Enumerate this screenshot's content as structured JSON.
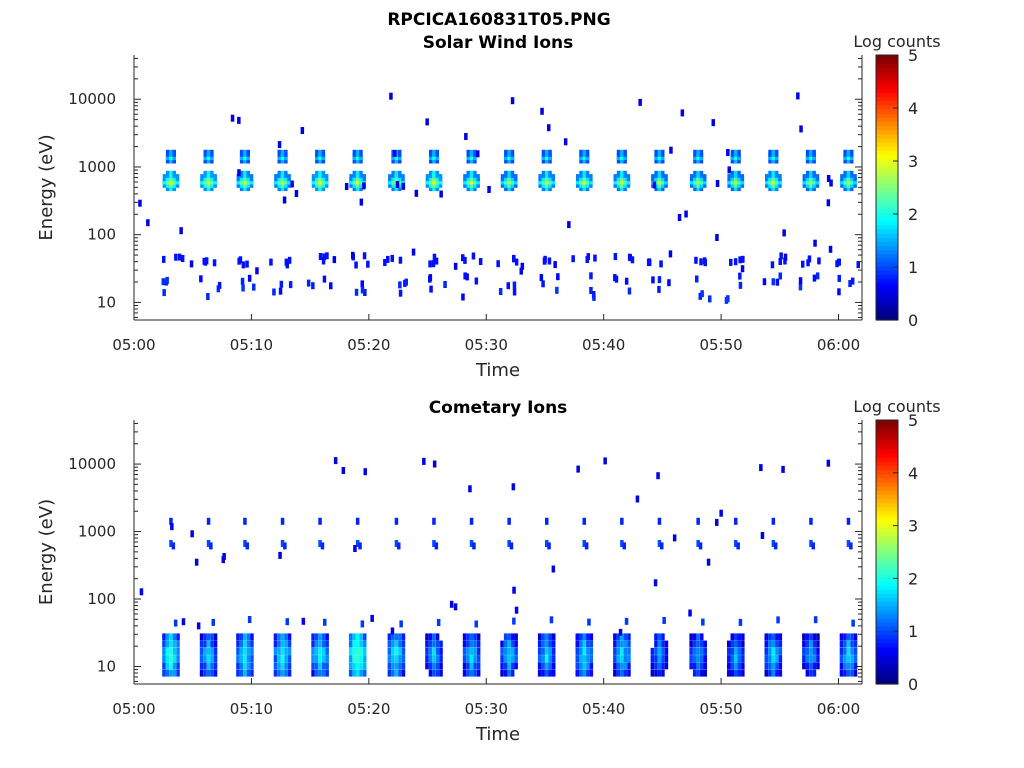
{
  "figure": {
    "file_title": "RPCICA160831T05.PNG"
  },
  "colorbar": {
    "label": "Log counts",
    "ticks": [
      "0",
      "1",
      "2",
      "3",
      "4",
      "5"
    ],
    "range": [
      0,
      5
    ],
    "colormap": "jet"
  },
  "chart_data": [
    {
      "type": "heatmap",
      "title": "Solar Wind Ions",
      "xlabel": "Time",
      "ylabel": "Energy (eV)",
      "x_ticks": [
        "05:00",
        "05:10",
        "05:20",
        "05:30",
        "05:40",
        "05:50",
        "06:00"
      ],
      "x_range_minutes": [
        0,
        62
      ],
      "y_ticks": [
        "10",
        "100",
        "1000",
        "10000"
      ],
      "y_scale": "log",
      "y_range_eV": [
        5.5,
        45000
      ],
      "peaks": [
        {
          "time_min": 3.0,
          "energy_eV": 700,
          "log_counts": 3.0
        },
        {
          "time_min": 6.2,
          "energy_eV": 700,
          "log_counts": 3.0
        },
        {
          "time_min": 9.3,
          "energy_eV": 700,
          "log_counts": 2.9
        },
        {
          "time_min": 12.5,
          "energy_eV": 700,
          "log_counts": 2.9
        },
        {
          "time_min": 15.7,
          "energy_eV": 700,
          "log_counts": 3.0
        },
        {
          "time_min": 18.9,
          "energy_eV": 700,
          "log_counts": 2.9
        },
        {
          "time_min": 22.2,
          "energy_eV": 700,
          "log_counts": 2.9
        },
        {
          "time_min": 25.4,
          "energy_eV": 700,
          "log_counts": 3.0
        },
        {
          "time_min": 28.6,
          "energy_eV": 700,
          "log_counts": 2.9
        },
        {
          "time_min": 31.8,
          "energy_eV": 700,
          "log_counts": 2.8
        },
        {
          "time_min": 35.0,
          "energy_eV": 700,
          "log_counts": 2.9
        },
        {
          "time_min": 38.2,
          "energy_eV": 700,
          "log_counts": 2.9
        },
        {
          "time_min": 41.4,
          "energy_eV": 700,
          "log_counts": 2.9
        },
        {
          "time_min": 44.6,
          "energy_eV": 700,
          "log_counts": 2.8
        },
        {
          "time_min": 47.9,
          "energy_eV": 700,
          "log_counts": 2.8
        },
        {
          "time_min": 51.1,
          "energy_eV": 700,
          "log_counts": 2.8
        },
        {
          "time_min": 54.3,
          "energy_eV": 700,
          "log_counts": 2.9
        },
        {
          "time_min": 57.5,
          "energy_eV": 700,
          "log_counts": 2.8
        },
        {
          "time_min": 60.7,
          "energy_eV": 700,
          "log_counts": 2.8
        }
      ],
      "secondary_peak_energy_eV": 1600,
      "low_energy_band_eV": [
        12,
        50
      ]
    },
    {
      "type": "heatmap",
      "title": "Cometary Ions",
      "xlabel": "Time",
      "ylabel": "Energy (eV)",
      "x_ticks": [
        "05:00",
        "05:10",
        "05:20",
        "05:30",
        "05:40",
        "05:50",
        "06:00"
      ],
      "x_range_minutes": [
        0,
        62
      ],
      "y_ticks": [
        "10",
        "100",
        "1000",
        "10000"
      ],
      "y_scale": "log",
      "y_range_eV": [
        5.5,
        45000
      ],
      "peaks": [
        {
          "time_min": 3.0,
          "energy_eV": 20,
          "log_counts": 2.2
        },
        {
          "time_min": 6.2,
          "energy_eV": 20,
          "log_counts": 1.8
        },
        {
          "time_min": 9.3,
          "energy_eV": 20,
          "log_counts": 2.0
        },
        {
          "time_min": 12.5,
          "energy_eV": 20,
          "log_counts": 2.0
        },
        {
          "time_min": 15.7,
          "energy_eV": 20,
          "log_counts": 2.0
        },
        {
          "time_min": 18.9,
          "energy_eV": 20,
          "log_counts": 2.4
        },
        {
          "time_min": 22.2,
          "energy_eV": 20,
          "log_counts": 2.0
        },
        {
          "time_min": 25.4,
          "energy_eV": 20,
          "log_counts": 1.7
        },
        {
          "time_min": 28.6,
          "energy_eV": 20,
          "log_counts": 1.8
        },
        {
          "time_min": 31.8,
          "energy_eV": 20,
          "log_counts": 1.8
        },
        {
          "time_min": 35.0,
          "energy_eV": 20,
          "log_counts": 1.8
        },
        {
          "time_min": 38.2,
          "energy_eV": 20,
          "log_counts": 1.9
        },
        {
          "time_min": 41.4,
          "energy_eV": 20,
          "log_counts": 1.9
        },
        {
          "time_min": 44.6,
          "energy_eV": 20,
          "log_counts": 1.5
        },
        {
          "time_min": 47.9,
          "energy_eV": 20,
          "log_counts": 1.6
        },
        {
          "time_min": 51.1,
          "energy_eV": 20,
          "log_counts": 1.6
        },
        {
          "time_min": 54.3,
          "energy_eV": 20,
          "log_counts": 1.8
        },
        {
          "time_min": 57.5,
          "energy_eV": 20,
          "log_counts": 1.6
        },
        {
          "time_min": 60.7,
          "energy_eV": 20,
          "log_counts": 1.8
        }
      ],
      "secondary_band_energy_eV": [
        750,
        1600
      ],
      "low_energy_band_eV": [
        9,
        55
      ]
    }
  ]
}
